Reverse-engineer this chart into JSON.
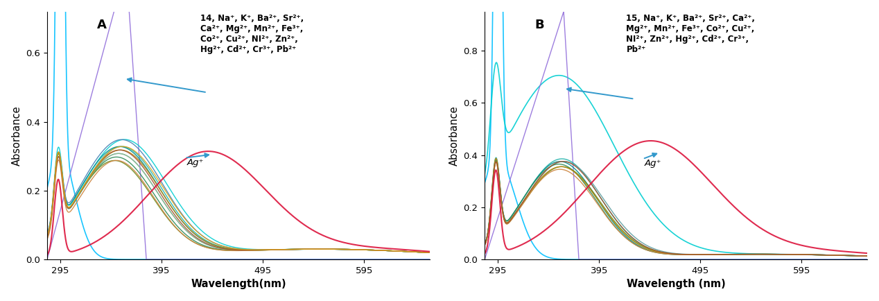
{
  "panel_A": {
    "label": "A",
    "xlabel": "Wavelength(nm)",
    "ylabel": "Absorbance",
    "xlim": [
      282,
      660
    ],
    "ylim": [
      0,
      0.72
    ],
    "yticks": [
      0,
      0.2,
      0.4,
      0.6
    ],
    "xticks": [
      295,
      395,
      495,
      595
    ],
    "legend_text": "14, Na⁺, K⁺, Ba²⁺, Sr²⁺,\nCa²⁺, Mg²⁺, Mn²⁺, Fe³⁺,\nCo²⁺, Cu²⁺, NI²⁺, Zn²⁺,\nHg²⁺, Cd²⁺, Cr³⁺, Pb²⁺",
    "ag_label": "Ag⁺"
  },
  "panel_B": {
    "label": "B",
    "xlabel": "Wavelength (nm)",
    "ylabel": "Absorbance",
    "xlim": [
      282,
      660
    ],
    "ylim": [
      0,
      0.95
    ],
    "yticks": [
      0,
      0.2,
      0.4,
      0.6,
      0.8
    ],
    "xticks": [
      295,
      395,
      495,
      595
    ],
    "legend_text": "15, Na⁺, K⁺, Ba²⁺, Sr²⁺, Ca²⁺,\nMg²⁺, Mn²⁺, Fe³⁺, Co²⁺, Cu²⁺,\nNI²⁺, Zn²⁺, Hg²⁺, Cd²⁺, Cr³⁺,\nPb²⁺",
    "ag_label": "Ag⁺"
  }
}
